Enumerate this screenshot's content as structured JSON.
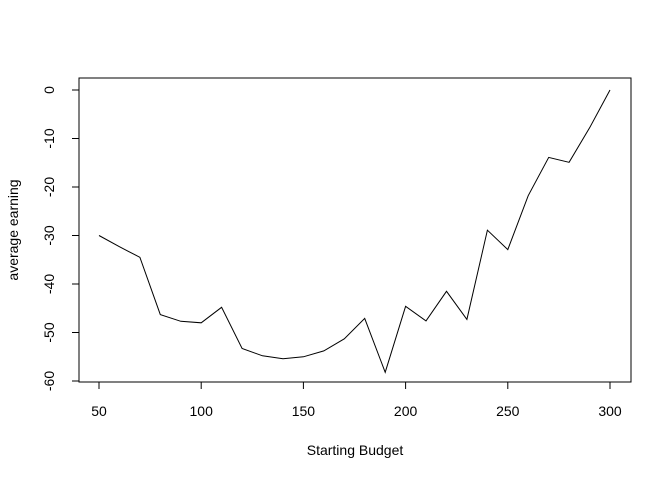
{
  "chart_data": {
    "type": "line",
    "title": "",
    "xlabel": "Starting Budget",
    "ylabel": "average earning",
    "xlim": [
      50,
      300
    ],
    "ylim": [
      -60,
      0
    ],
    "x_ticks": [
      50,
      100,
      150,
      200,
      250,
      300
    ],
    "y_ticks": [
      -60,
      -50,
      -40,
      -30,
      -20,
      -10,
      0
    ],
    "grid": false,
    "legend": "none",
    "line_color": "#000000",
    "series": [
      {
        "x": [
          50,
          60,
          70,
          80,
          90,
          100,
          110,
          120,
          130,
          140,
          150,
          160,
          170,
          180,
          190,
          200,
          210,
          220,
          230,
          240,
          250,
          260,
          270,
          280,
          290,
          300
        ],
        "values": [
          -30,
          -32.3,
          -34.5,
          -46.3,
          -47.7,
          -48,
          -44.8,
          -53.3,
          -54.8,
          -55.4,
          -55,
          -53.8,
          -51.3,
          -47.1,
          -58.2,
          -44.6,
          -47.6,
          -41.5,
          -47.3,
          -28.9,
          -32.9,
          -21.8,
          -13.9,
          -14.9,
          -7.8,
          0
        ]
      }
    ]
  }
}
